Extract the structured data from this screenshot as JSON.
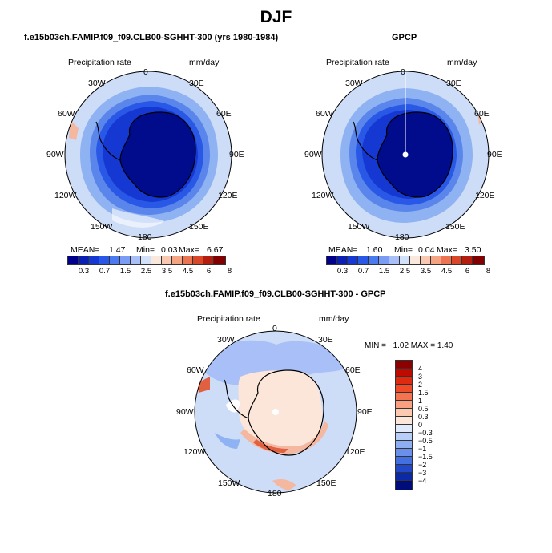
{
  "title": "DJF",
  "colors": {
    "ice": "#000c8c",
    "deep": "#0a2ac8",
    "mid": "#3d6ee6",
    "light": "#8fb2f2",
    "pale": "#cddcf7",
    "land": "#ffffff",
    "coast": "#000000",
    "warm": "#f4b8a0",
    "hot": "#e06040"
  },
  "panels": {
    "model": {
      "title": "f.e15b03ch.FAMIP.f09_f09.CLB00-SGHHT-300 (yrs 1980-1984)",
      "variable": "Precipitation rate",
      "units": "mm/day",
      "stats": {
        "mean_label": "MEAN=",
        "mean": "1.47",
        "min_label": "Min=",
        "min": "0.03",
        "max_label": "Max=",
        "max": "6.67"
      }
    },
    "obs": {
      "title": "GPCP",
      "variable": "Precipitation rate",
      "units": "mm/day",
      "stats": {
        "mean_label": "MEAN=",
        "mean": "1.60",
        "min_label": "Min=",
        "min": "0.04",
        "max_label": "Max=",
        "max": "3.50"
      }
    },
    "diff": {
      "title": "f.e15b03ch.FAMIP.f09_f09.CLB00-SGHHT-300 - GPCP",
      "variable": "Precipitation rate",
      "units": "mm/day",
      "stats_text": "MIN = −1.02 MAX =   1.40"
    }
  },
  "longitude_labels": {
    "top": "0",
    "top_right": "30E",
    "right_upper": "60E",
    "right": "90E",
    "right_lower": "120E",
    "bottom_right": "150E",
    "bottom": "180",
    "bottom_left": "150W",
    "left_lower": "120W",
    "left": "90W",
    "left_upper": "60W",
    "top_left": "30W"
  },
  "horizontal_colorbar": {
    "labels": [
      "0.3",
      "0.7",
      "1.5",
      "2.5",
      "3.5",
      "4.5",
      "6",
      "8"
    ],
    "colors": [
      "#00008b",
      "#0a1fb4",
      "#1538d2",
      "#2a58e6",
      "#4a7af0",
      "#7a9cf4",
      "#a8c0f7",
      "#d2e0fa",
      "#fbe8dc",
      "#f8c8b0",
      "#f4a482",
      "#ec7450",
      "#da4628",
      "#b41e10",
      "#820000"
    ]
  },
  "vertical_colorbar": {
    "labels": [
      "4",
      "3",
      "2",
      "1.5",
      "1",
      "0.5",
      "0.3",
      "0",
      "−0.3",
      "−0.5",
      "−1",
      "−1.5",
      "−2",
      "−3",
      "−4"
    ],
    "colors": [
      "#8b0000",
      "#c00a00",
      "#e02a10",
      "#f04a28",
      "#f47450",
      "#f8a080",
      "#fbc8b0",
      "#fce6da",
      "#e0eafb",
      "#b8cdf7",
      "#8eaef2",
      "#6a90ec",
      "#4270e0",
      "#2048c8",
      "#0a2aa8",
      "#000c78"
    ]
  }
}
